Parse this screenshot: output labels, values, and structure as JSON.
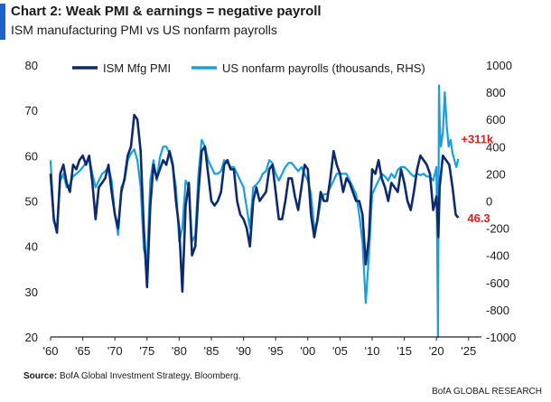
{
  "header": {
    "title": "Chart 2:  Weak PMI & earnings = negative payroll",
    "subtitle": "ISM manufacturing PMI vs US nonfarm payrolls"
  },
  "footer": {
    "source_label": "Source:",
    "source_text": "BofA Global Investment Strategy, Bloomberg.",
    "brand": "BofA GLOBAL RESEARCH"
  },
  "colors": {
    "pmi": "#0d2a6e",
    "payrolls": "#16a0e0",
    "annotation": "#e01d1d",
    "accent": "#1f63c6"
  },
  "chart_data": {
    "type": "line",
    "title": "Chart 2:  Weak PMI & earnings = negative payroll",
    "subtitle": "ISM manufacturing PMI vs US nonfarm payrolls",
    "legend_position": "top-left",
    "grid": false,
    "x_ticks": [
      "'60",
      "'65",
      "'70",
      "'75",
      "'80",
      "'85",
      "'90",
      "'95",
      "'00",
      "'05",
      "'10",
      "'15",
      "'20",
      "'25"
    ],
    "x_tick_years": [
      1960,
      1965,
      1970,
      1975,
      1980,
      1985,
      1990,
      1995,
      2000,
      2005,
      2010,
      2015,
      2020,
      2025
    ],
    "xlim": [
      1960,
      2027
    ],
    "y_left": {
      "ylim": [
        20,
        80
      ],
      "ticks": [
        "20",
        "30",
        "40",
        "50",
        "60",
        "70",
        "80"
      ]
    },
    "y_right": {
      "ylim": [
        -1000,
        1000
      ],
      "ticks": [
        "-1000",
        "-800",
        "-600",
        "-400",
        "-200",
        "0",
        "200",
        "400",
        "600",
        "800",
        "1000"
      ]
    },
    "series": [
      {
        "name": "ISM Mfg PMI",
        "axis": "left",
        "x": [
          1960.0,
          1960.5,
          1961.0,
          1961.5,
          1962.0,
          1962.5,
          1963.0,
          1963.5,
          1964.0,
          1964.5,
          1965.0,
          1965.5,
          1966.0,
          1966.5,
          1967.0,
          1967.5,
          1968.0,
          1968.5,
          1969.0,
          1969.5,
          1970.0,
          1970.5,
          1971.0,
          1971.5,
          1972.0,
          1972.5,
          1973.0,
          1973.5,
          1974.0,
          1974.5,
          1975.0,
          1975.5,
          1976.0,
          1976.5,
          1977.0,
          1977.5,
          1978.0,
          1978.5,
          1979.0,
          1979.5,
          1980.0,
          1980.5,
          1981.0,
          1981.5,
          1982.0,
          1982.5,
          1983.0,
          1983.5,
          1984.0,
          1984.5,
          1985.0,
          1985.5,
          1986.0,
          1986.5,
          1987.0,
          1987.5,
          1988.0,
          1988.5,
          1989.0,
          1989.5,
          1990.0,
          1990.5,
          1991.0,
          1991.5,
          1992.0,
          1992.5,
          1993.0,
          1993.5,
          1994.0,
          1994.5,
          1995.0,
          1995.5,
          1996.0,
          1996.5,
          1997.0,
          1997.5,
          1998.0,
          1998.5,
          1999.0,
          1999.5,
          2000.0,
          2000.5,
          2001.0,
          2001.5,
          2002.0,
          2002.5,
          2003.0,
          2003.5,
          2004.0,
          2004.5,
          2005.0,
          2005.5,
          2006.0,
          2006.5,
          2007.0,
          2007.5,
          2008.0,
          2008.5,
          2009.0,
          2009.5,
          2010.0,
          2010.5,
          2011.0,
          2011.5,
          2012.0,
          2012.5,
          2013.0,
          2013.5,
          2014.0,
          2014.5,
          2015.0,
          2015.5,
          2016.0,
          2016.5,
          2017.0,
          2017.5,
          2018.0,
          2018.5,
          2019.0,
          2019.5,
          2020.0,
          2020.3,
          2020.5,
          2021.0,
          2021.5,
          2022.0,
          2022.5,
          2023.0,
          2023.4
        ],
        "y": [
          56,
          46,
          43,
          56,
          58,
          54,
          52,
          58,
          57,
          59,
          60,
          58,
          60,
          54,
          46,
          53,
          54,
          55,
          58,
          52,
          47,
          44,
          52,
          55,
          60,
          62,
          69,
          68,
          61,
          44,
          31,
          49,
          58,
          55,
          57,
          59,
          58,
          61,
          58,
          50,
          44,
          30,
          49,
          54,
          38,
          40,
          52,
          61,
          62,
          56,
          50,
          49,
          50,
          52,
          58,
          59,
          57,
          57,
          50,
          47,
          46,
          44,
          40,
          50,
          53,
          50,
          51,
          52,
          57,
          58,
          52,
          46,
          46,
          50,
          55,
          55,
          51,
          48,
          53,
          58,
          57,
          47,
          42,
          46,
          52,
          50,
          50,
          55,
          61,
          58,
          56,
          52,
          55,
          54,
          52,
          50,
          50,
          47,
          36,
          42,
          57,
          56,
          59,
          55,
          53,
          50,
          54,
          53,
          52,
          57,
          54,
          50,
          48,
          52,
          57,
          60,
          59,
          58,
          56,
          48,
          51,
          42,
          53,
          60,
          59,
          58,
          53,
          47,
          46.3
        ]
      },
      {
        "name": "US nonfarm payrolls (thousands, RHS)",
        "axis": "right",
        "x": [
          1960.0,
          1960.5,
          1961.0,
          1961.5,
          1962.0,
          1962.5,
          1963.0,
          1963.5,
          1964.0,
          1964.5,
          1965.0,
          1965.5,
          1966.0,
          1966.5,
          1967.0,
          1967.5,
          1968.0,
          1968.5,
          1969.0,
          1969.5,
          1970.0,
          1970.5,
          1971.0,
          1971.5,
          1972.0,
          1972.5,
          1973.0,
          1973.5,
          1974.0,
          1974.5,
          1975.0,
          1975.5,
          1976.0,
          1976.5,
          1977.0,
          1977.5,
          1978.0,
          1978.5,
          1979.0,
          1979.5,
          1980.0,
          1980.5,
          1981.0,
          1981.5,
          1982.0,
          1982.5,
          1983.0,
          1983.5,
          1984.0,
          1984.5,
          1985.0,
          1985.5,
          1986.0,
          1986.5,
          1987.0,
          1987.5,
          1988.0,
          1988.5,
          1989.0,
          1989.5,
          1990.0,
          1990.5,
          1991.0,
          1991.5,
          1992.0,
          1992.5,
          1993.0,
          1993.5,
          1994.0,
          1994.5,
          1995.0,
          1995.5,
          1996.0,
          1996.5,
          1997.0,
          1997.5,
          1998.0,
          1998.5,
          1999.0,
          1999.5,
          2000.0,
          2000.5,
          2001.0,
          2001.5,
          2002.0,
          2002.5,
          2003.0,
          2003.5,
          2004.0,
          2004.5,
          2005.0,
          2005.5,
          2006.0,
          2006.5,
          2007.0,
          2007.5,
          2008.0,
          2008.5,
          2009.0,
          2009.5,
          2010.0,
          2010.5,
          2011.0,
          2011.5,
          2012.0,
          2012.5,
          2013.0,
          2013.5,
          2014.0,
          2014.5,
          2015.0,
          2015.5,
          2016.0,
          2016.5,
          2017.0,
          2017.5,
          2018.0,
          2018.5,
          2019.0,
          2019.5,
          2020.0,
          2020.25,
          2020.4,
          2020.5,
          2020.7,
          2021.0,
          2021.3,
          2021.6,
          2021.9,
          2022.2,
          2022.5,
          2022.8,
          2023.1,
          2023.4
        ],
        "y": [
          300,
          -150,
          -200,
          150,
          200,
          100,
          120,
          180,
          200,
          220,
          250,
          280,
          320,
          200,
          100,
          150,
          200,
          220,
          250,
          150,
          -100,
          -250,
          100,
          150,
          300,
          350,
          380,
          300,
          100,
          -350,
          -450,
          150,
          300,
          150,
          320,
          400,
          400,
          350,
          250,
          100,
          -300,
          -200,
          150,
          100,
          -300,
          -250,
          200,
          450,
          400,
          300,
          250,
          200,
          200,
          220,
          300,
          280,
          250,
          250,
          200,
          150,
          100,
          -50,
          -200,
          100,
          120,
          150,
          200,
          220,
          300,
          280,
          200,
          150,
          200,
          250,
          280,
          280,
          250,
          220,
          250,
          200,
          150,
          50,
          -200,
          -150,
          0,
          50,
          50,
          100,
          150,
          200,
          200,
          200,
          200,
          150,
          100,
          50,
          -100,
          -300,
          -750,
          -400,
          50,
          100,
          150,
          200,
          180,
          150,
          200,
          170,
          230,
          250,
          250,
          230,
          200,
          180,
          200,
          190,
          200,
          180,
          180,
          150,
          250,
          -1000,
          850,
          600,
          400,
          500,
          800,
          550,
          400,
          450,
          350,
          300,
          250,
          311
        ]
      }
    ],
    "annotations": [
      {
        "text": "+311k",
        "series": "US nonfarm payrolls (thousands, RHS)",
        "x": 2023.4,
        "y": 311
      },
      {
        "text": "46.3",
        "series": "ISM Mfg PMI",
        "x": 2023.4,
        "y": 46.3
      }
    ]
  }
}
